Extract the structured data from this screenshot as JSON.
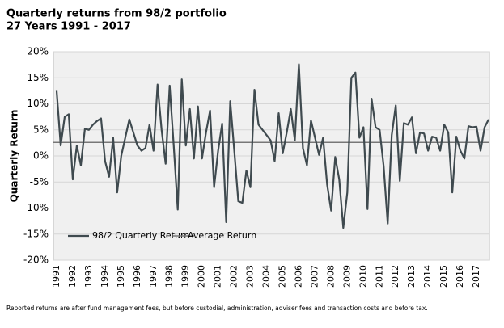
{
  "chart_data": {
    "type": "line",
    "title": "Quarterly returns from 98/2 portfolio",
    "subtitle": "27 Years 1991 - 2017",
    "y_label": "Quarterly Return",
    "footnote": "Reported returns are after fund management fees, but before custodial, administration, adviser fees and transaction costs and before tax.",
    "categories": [
      "1991",
      null,
      null,
      null,
      "1992",
      null,
      null,
      null,
      "1993",
      null,
      null,
      null,
      "1994",
      null,
      null,
      null,
      "1995",
      null,
      null,
      null,
      "1996",
      null,
      null,
      null,
      "1997",
      null,
      null,
      null,
      "1998",
      null,
      null,
      null,
      "1999",
      null,
      null,
      null,
      "2000",
      null,
      null,
      null,
      "2001",
      null,
      null,
      null,
      "2002",
      null,
      null,
      null,
      "2003",
      null,
      null,
      null,
      "2004",
      null,
      null,
      null,
      "2005",
      null,
      null,
      null,
      "2006",
      null,
      null,
      null,
      "2007",
      null,
      null,
      null,
      "2008",
      null,
      null,
      null,
      "2009",
      null,
      null,
      null,
      "2010",
      null,
      null,
      null,
      "2011",
      null,
      null,
      null,
      "2012",
      null,
      null,
      null,
      "2013",
      null,
      null,
      null,
      "2014",
      null,
      null,
      null,
      "2015",
      null,
      null,
      null,
      "2016",
      null,
      null,
      null,
      "2017",
      null,
      null,
      null
    ],
    "series": [
      {
        "name": "98/2 Quarterly Return",
        "color": "#3f4a4f",
        "values": [
          12.5,
          2,
          7.5,
          8,
          -4.5,
          2,
          -1.8,
          5.2,
          5,
          6,
          6.7,
          7.2,
          -1,
          -4,
          3.5,
          -7,
          0,
          3.5,
          7,
          4.5,
          2,
          1,
          1.5,
          6,
          1,
          13.7,
          5,
          -1.5,
          13.5,
          2,
          -10.3,
          14.7,
          2,
          9,
          -0.5,
          9.5,
          -0.5,
          4.5,
          8.7,
          -6,
          1,
          6.2,
          -12.7,
          10.5,
          1,
          -8.7,
          -9,
          -2.8,
          -6,
          12.7,
          6,
          5,
          4,
          3,
          -1,
          8.2,
          0.5,
          4.5,
          9,
          3,
          17.6,
          1.5,
          -1.8,
          6.8,
          3.5,
          0.2,
          3.5,
          -5.5,
          -10.5,
          -0.2,
          -4.5,
          -13.8,
          -7,
          15,
          16,
          3.5,
          5.5,
          -10.2,
          11,
          5.5,
          5,
          -2,
          -13,
          4,
          9.7,
          -4.8,
          6.3,
          6,
          7.4,
          0.5,
          4.5,
          4.3,
          1,
          3.7,
          3.5,
          1,
          6,
          4.5,
          -7,
          3.7,
          1,
          -0.5,
          5.7,
          5.5,
          5.6,
          1,
          5.5,
          7
        ]
      }
    ],
    "average": {
      "name": "Average Return",
      "color": "#777777",
      "value": 2.6
    },
    "ylim": [
      -20,
      20
    ],
    "yticks": [
      {
        "value": -20,
        "label": "-20%"
      },
      {
        "value": -15,
        "label": "-15%"
      },
      {
        "value": -10,
        "label": "-10%"
      },
      {
        "value": -5,
        "label": "-5%"
      },
      {
        "value": 0,
        "label": "0%"
      },
      {
        "value": 5,
        "label": "5%"
      },
      {
        "value": 10,
        "label": "10%"
      },
      {
        "value": 15,
        "label": "15%"
      },
      {
        "value": 20,
        "label": "20%"
      }
    ],
    "grid": true
  }
}
